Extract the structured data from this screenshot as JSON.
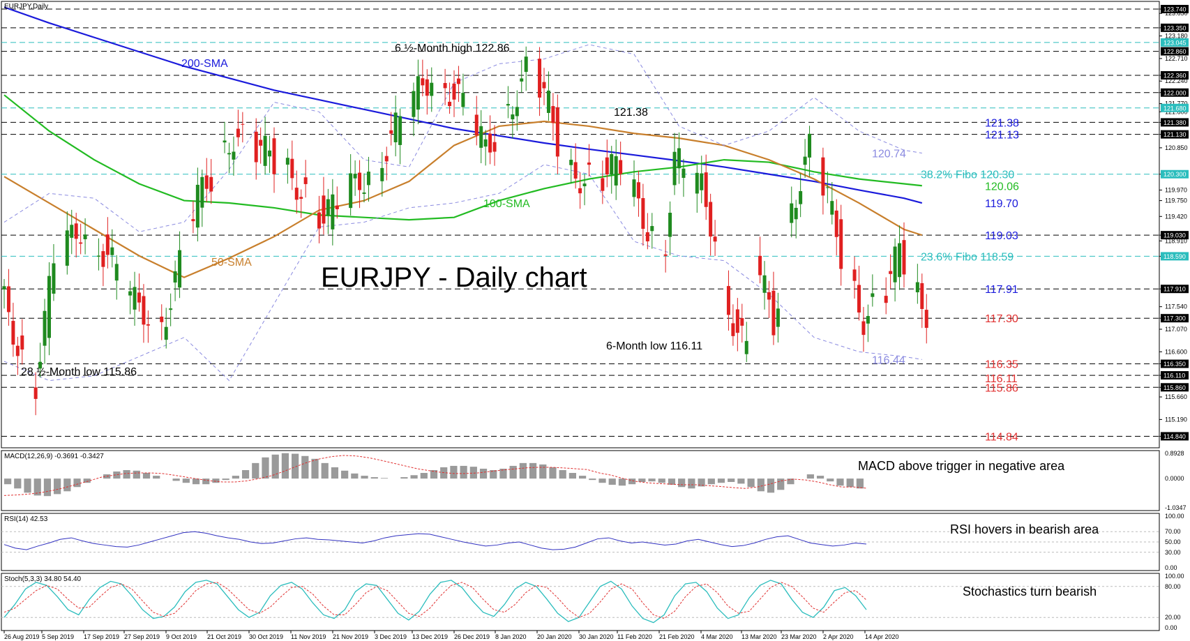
{
  "chart_data": {
    "type": "candlestick",
    "symbol_label": "EURJPY,Daily",
    "title": "EURJPY - Daily chart",
    "y_range": [
      114.6,
      123.9
    ],
    "x_labels": [
      "26 Aug 2019",
      "5 Sep 2019",
      "17 Sep 2019",
      "27 Sep 2019",
      "9 Oct 2019",
      "21 Oct 2019",
      "30 Oct 2019",
      "11 Nov 2019",
      "21 Nov 2019",
      "3 Dec 2019",
      "13 Dec 2019",
      "26 Dec 2019",
      "8 Jan 2020",
      "20 Jan 2020",
      "30 Jan 2020",
      "11 Feb 2020",
      "21 Feb 2020",
      "4 Mar 2020",
      "13 Mar 2020",
      "23 Mar 2020",
      "2 Apr 2020",
      "14 Apr 2020"
    ],
    "price_axis_ticks": [
      "123.740",
      "123.650",
      "123.350",
      "123.180",
      "122.710",
      "122.360",
      "122.240",
      "122.000",
      "121.770",
      "121.600",
      "121.380",
      "121.130",
      "120.850",
      "120.300",
      "119.970",
      "119.750",
      "119.420",
      "119.030",
      "118.590",
      "118.910",
      "117.910",
      "117.540",
      "117.300",
      "117.070",
      "116.600",
      "116.350",
      "116.110",
      "115.860",
      "115.660",
      "115.190",
      "114.840"
    ],
    "highlighted_levels": [
      {
        "value": 123.74,
        "label": "123.740",
        "style": "box"
      },
      {
        "value": 123.35,
        "label": "123.350",
        "style": "box"
      },
      {
        "value": 123.045,
        "label": "123.045",
        "style": "cyan-box"
      },
      {
        "value": 122.86,
        "label": "122.860",
        "style": "box"
      },
      {
        "value": 122.36,
        "label": "122.360",
        "style": "box"
      },
      {
        "value": 122.0,
        "label": "122.000",
        "style": "box"
      },
      {
        "value": 121.68,
        "label": "121.680",
        "style": "cyan-box"
      },
      {
        "value": 121.38,
        "label": "121.380",
        "style": "box"
      },
      {
        "value": 121.13,
        "label": "121.130",
        "style": "box"
      },
      {
        "value": 120.3,
        "label": "120.300",
        "style": "cyan-box"
      },
      {
        "value": 119.03,
        "label": "119.030",
        "style": "box"
      },
      {
        "value": 118.59,
        "label": "118.590",
        "style": "cyan-box"
      },
      {
        "value": 117.91,
        "label": "117.910",
        "style": "box"
      },
      {
        "value": 117.3,
        "label": "117.300",
        "style": "box"
      },
      {
        "value": 116.35,
        "label": "116.350",
        "style": "box"
      },
      {
        "value": 116.11,
        "label": "116.110",
        "style": "box"
      },
      {
        "value": 115.86,
        "label": "115.860",
        "style": "box"
      },
      {
        "value": 114.84,
        "label": "114.840",
        "style": "box"
      }
    ],
    "horizontal_lines": [
      {
        "value": 123.74,
        "color": "#000000"
      },
      {
        "value": 123.35,
        "color": "#000000"
      },
      {
        "value": 123.045,
        "color": "#2bbdbd"
      },
      {
        "value": 122.86,
        "color": "#000000"
      },
      {
        "value": 122.36,
        "color": "#000000"
      },
      {
        "value": 122.0,
        "color": "#000000"
      },
      {
        "value": 121.68,
        "color": "#2bbdbd"
      },
      {
        "value": 121.38,
        "color": "#000000"
      },
      {
        "value": 121.13,
        "color": "#000000"
      },
      {
        "value": 120.3,
        "color": "#2bbdbd"
      },
      {
        "value": 119.03,
        "color": "#000000"
      },
      {
        "value": 118.59,
        "color": "#2bbdbd"
      },
      {
        "value": 117.91,
        "color": "#000000"
      },
      {
        "value": 117.3,
        "color": "#000000"
      },
      {
        "value": 116.35,
        "color": "#000000"
      },
      {
        "value": 116.11,
        "color": "#000000"
      },
      {
        "value": 115.86,
        "color": "#000000"
      },
      {
        "value": 114.84,
        "color": "#000000"
      }
    ],
    "right_level_labels": [
      {
        "text": "121.38",
        "value": 121.38,
        "color": "#1a1adb"
      },
      {
        "text": "121.13",
        "value": 121.13,
        "color": "#1a1adb"
      },
      {
        "text": "120.74",
        "value": 120.74,
        "color": "#8a8ae0"
      },
      {
        "text": "38.2% Fibo 120.30",
        "value": 120.3,
        "color": "#2bbdbd"
      },
      {
        "text": "120.06",
        "value": 120.06,
        "color": "#22bb22"
      },
      {
        "text": "119.70",
        "value": 119.7,
        "color": "#1a1adb"
      },
      {
        "text": "119.03",
        "value": 119.03,
        "color": "#1a1adb"
      },
      {
        "text": "23.6% Fibo 118.59",
        "value": 118.59,
        "color": "#2bbdbd"
      },
      {
        "text": "117.91",
        "value": 117.91,
        "color": "#1a1adb"
      },
      {
        "text": "117.30",
        "value": 117.3,
        "color": "#e03030"
      },
      {
        "text": "116.44",
        "value": 116.44,
        "color": "#8a8ae0"
      },
      {
        "text": "116.35",
        "value": 116.35,
        "color": "#e03030"
      },
      {
        "text": "116.11",
        "value": 116.11,
        "color": "#e03030"
      },
      {
        "text": "115.86",
        "value": 115.86,
        "color": "#e03030"
      },
      {
        "text": "114.84",
        "value": 114.84,
        "color": "#e03030"
      }
    ],
    "annotations": [
      {
        "text": "6 ½-Month high 122.86",
        "color": "#000000"
      },
      {
        "text": "121.38",
        "color": "#000000"
      },
      {
        "text": "200-SMA",
        "color": "#1a1adb"
      },
      {
        "text": "100-SMA",
        "color": "#22bb22"
      },
      {
        "text": "50-SMA",
        "color": "#c87f2c"
      },
      {
        "text": "28 ½-Month low 115.86",
        "color": "#000000"
      },
      {
        "text": "6-Month low 116.11",
        "color": "#000000"
      }
    ],
    "series": [
      {
        "name": "200-SMA",
        "color": "#1a1adb",
        "points": [
          [
            0,
            123.78
          ],
          [
            10,
            123.45
          ],
          [
            20,
            123.15
          ],
          [
            30,
            122.85
          ],
          [
            40,
            122.55
          ],
          [
            50,
            122.3
          ],
          [
            60,
            122.05
          ],
          [
            70,
            121.85
          ],
          [
            80,
            121.65
          ],
          [
            90,
            121.45
          ],
          [
            100,
            121.25
          ],
          [
            110,
            121.1
          ],
          [
            120,
            120.95
          ],
          [
            130,
            120.82
          ],
          [
            140,
            120.7
          ],
          [
            150,
            120.58
          ],
          [
            160,
            120.45
          ],
          [
            170,
            120.3
          ],
          [
            180,
            120.15
          ],
          [
            190,
            119.97
          ],
          [
            200,
            119.8
          ],
          [
            204,
            119.7
          ]
        ]
      },
      {
        "name": "100-SMA",
        "color": "#22bb22",
        "points": [
          [
            0,
            121.95
          ],
          [
            10,
            121.2
          ],
          [
            20,
            120.6
          ],
          [
            30,
            120.1
          ],
          [
            40,
            119.75
          ],
          [
            50,
            119.7
          ],
          [
            60,
            119.6
          ],
          [
            70,
            119.45
          ],
          [
            80,
            119.4
          ],
          [
            90,
            119.35
          ],
          [
            100,
            119.4
          ],
          [
            110,
            119.75
          ],
          [
            120,
            120.0
          ],
          [
            130,
            120.2
          ],
          [
            140,
            120.35
          ],
          [
            150,
            120.45
          ],
          [
            160,
            120.6
          ],
          [
            170,
            120.55
          ],
          [
            180,
            120.35
          ],
          [
            190,
            120.2
          ],
          [
            200,
            120.1
          ],
          [
            204,
            120.06
          ]
        ]
      },
      {
        "name": "50-SMA",
        "color": "#c87f2c",
        "points": [
          [
            0,
            120.25
          ],
          [
            10,
            119.7
          ],
          [
            20,
            119.15
          ],
          [
            30,
            118.6
          ],
          [
            40,
            118.15
          ],
          [
            50,
            118.55
          ],
          [
            60,
            119.0
          ],
          [
            70,
            119.55
          ],
          [
            80,
            119.75
          ],
          [
            90,
            120.15
          ],
          [
            100,
            120.9
          ],
          [
            110,
            121.3
          ],
          [
            120,
            121.4
          ],
          [
            130,
            121.3
          ],
          [
            140,
            121.15
          ],
          [
            150,
            121.05
          ],
          [
            160,
            120.9
          ],
          [
            170,
            120.6
          ],
          [
            180,
            120.2
          ],
          [
            190,
            119.7
          ],
          [
            200,
            119.15
          ],
          [
            204,
            119.03
          ]
        ]
      },
      {
        "name": "Bollinger upper",
        "color": "#8a8ae0",
        "points": [
          [
            0,
            119.3
          ],
          [
            10,
            119.9
          ],
          [
            20,
            119.8
          ],
          [
            30,
            119.1
          ],
          [
            40,
            119.3
          ],
          [
            50,
            120.4
          ],
          [
            60,
            121.8
          ],
          [
            70,
            121.6
          ],
          [
            80,
            120.6
          ],
          [
            90,
            120.45
          ],
          [
            100,
            122.2
          ],
          [
            110,
            122.6
          ],
          [
            120,
            122.7
          ],
          [
            130,
            123.0
          ],
          [
            140,
            122.8
          ],
          [
            150,
            121.3
          ],
          [
            160,
            120.9
          ],
          [
            170,
            121.2
          ],
          [
            180,
            121.9
          ],
          [
            190,
            121.2
          ],
          [
            200,
            120.8
          ],
          [
            204,
            120.74
          ]
        ]
      },
      {
        "name": "Bollinger lower",
        "color": "#8a8ae0",
        "points": [
          [
            0,
            116.4
          ],
          [
            10,
            116.0
          ],
          [
            20,
            116.1
          ],
          [
            30,
            116.5
          ],
          [
            40,
            116.9
          ],
          [
            50,
            116.0
          ],
          [
            60,
            117.6
          ],
          [
            70,
            119.2
          ],
          [
            80,
            119.3
          ],
          [
            90,
            119.6
          ],
          [
            100,
            119.7
          ],
          [
            110,
            119.9
          ],
          [
            120,
            120.5
          ],
          [
            130,
            120.3
          ],
          [
            140,
            118.9
          ],
          [
            150,
            118.6
          ],
          [
            160,
            118.5
          ],
          [
            170,
            117.8
          ],
          [
            180,
            116.9
          ],
          [
            190,
            116.6
          ],
          [
            200,
            116.5
          ],
          [
            204,
            116.44
          ]
        ]
      }
    ]
  },
  "macd_panel": {
    "label": "MACD(12,26,9) -0.3691 -0.3427",
    "annotation": "MACD above trigger in negative area",
    "ticks": [
      "0.8928",
      "0.0000",
      "-1.0347"
    ],
    "y_range": [
      -1.0347,
      0.8928
    ],
    "histogram": [
      -0.2,
      -0.35,
      -0.5,
      -0.6,
      -0.62,
      -0.55,
      -0.45,
      -0.3,
      -0.15,
      0.0,
      0.15,
      0.25,
      0.3,
      0.28,
      0.2,
      0.1,
      0.0,
      -0.08,
      -0.15,
      -0.2,
      -0.2,
      -0.15,
      -0.05,
      0.1,
      0.3,
      0.55,
      0.75,
      0.85,
      0.9,
      0.88,
      0.8,
      0.7,
      0.55,
      0.4,
      0.28,
      0.18,
      0.1,
      0.05,
      0.02,
      0.0,
      0.05,
      0.12,
      0.2,
      0.3,
      0.4,
      0.45,
      0.45,
      0.42,
      0.35,
      0.3,
      0.35,
      0.45,
      0.55,
      0.55,
      0.5,
      0.4,
      0.3,
      0.2,
      0.1,
      -0.05,
      -0.15,
      -0.22,
      -0.25,
      -0.2,
      -0.12,
      -0.1,
      -0.15,
      -0.22,
      -0.3,
      -0.35,
      -0.28,
      -0.2,
      -0.15,
      -0.12,
      -0.18,
      -0.3,
      -0.45,
      -0.5,
      -0.4,
      -0.2,
      0.0,
      0.15,
      0.1,
      -0.1,
      -0.25,
      -0.3,
      -0.35
    ],
    "signal": [
      -0.6,
      -0.58,
      -0.55,
      -0.5,
      -0.42,
      -0.32,
      -0.2,
      -0.08,
      0.05,
      0.12,
      0.18,
      0.2,
      0.2,
      0.18,
      0.12,
      0.05,
      -0.02,
      -0.08,
      -0.12,
      -0.12,
      -0.08,
      0.0,
      0.1,
      0.25,
      0.42,
      0.58,
      0.7,
      0.78,
      0.82,
      0.8,
      0.74,
      0.65,
      0.55,
      0.45,
      0.35,
      0.28,
      0.22,
      0.18,
      0.18,
      0.2,
      0.25,
      0.3,
      0.34,
      0.38,
      0.4,
      0.4,
      0.38,
      0.35,
      0.32,
      0.2,
      0.12,
      0.0,
      -0.1,
      -0.15,
      -0.18,
      -0.2,
      -0.22,
      -0.22,
      -0.25,
      -0.28,
      -0.32,
      -0.35,
      -0.3,
      -0.2,
      -0.08,
      -0.02,
      -0.05,
      -0.12,
      -0.22,
      -0.3,
      -0.3,
      -0.34
    ],
    "hist_color": "#9a9a9a",
    "signal_color": "#e03030"
  },
  "rsi_panel": {
    "label": "RSI(14) 42.53",
    "annotation": "RSI hovers in bearish area",
    "ticks": [
      "100.00",
      "70.00",
      "50.00",
      "30.00",
      "0.00"
    ],
    "y_range": [
      0,
      100
    ],
    "values": [
      45,
      38,
      35,
      42,
      48,
      55,
      58,
      52,
      47,
      44,
      41,
      40,
      44,
      50,
      56,
      62,
      68,
      70,
      67,
      62,
      58,
      55,
      50,
      47,
      48,
      52,
      56,
      58,
      55,
      54,
      52,
      50,
      48,
      52,
      58,
      62,
      64,
      66,
      65,
      60,
      55,
      50,
      46,
      42,
      44,
      48,
      50,
      44,
      38,
      35,
      36,
      40,
      48,
      56,
      58,
      52,
      48,
      50,
      47,
      44,
      46,
      52,
      55,
      50,
      45,
      41,
      43,
      48,
      55,
      60,
      62,
      55,
      48,
      45,
      42,
      44,
      48,
      46
    ],
    "color": "#3030c0"
  },
  "stoch_panel": {
    "label": "Stoch(5,3,3) 34.80 54.40",
    "annotation": "Stochastics turn bearish",
    "ticks": [
      "100.00",
      "80.00",
      "20.00",
      "0.00"
    ],
    "y_range": [
      0,
      100
    ],
    "k_values": [
      20,
      45,
      75,
      88,
      82,
      60,
      35,
      25,
      55,
      78,
      90,
      85,
      62,
      35,
      18,
      22,
      40,
      70,
      88,
      92,
      85,
      60,
      35,
      20,
      30,
      62,
      82,
      88,
      75,
      48,
      25,
      18,
      35,
      70,
      85,
      82,
      55,
      28,
      15,
      32,
      65,
      88,
      92,
      78,
      52,
      30,
      22,
      45,
      75,
      88,
      80,
      55,
      28,
      12,
      20,
      50,
      80,
      90,
      75,
      42,
      18,
      10,
      25,
      62,
      85,
      88,
      70,
      38,
      18,
      25,
      58,
      82,
      92,
      85,
      55,
      30,
      20,
      40,
      72,
      78,
      62,
      35
    ],
    "d_values": [
      30,
      38,
      55,
      72,
      82,
      75,
      55,
      38,
      40,
      60,
      78,
      85,
      75,
      52,
      30,
      22,
      28,
      48,
      72,
      85,
      88,
      75,
      55,
      35,
      28,
      40,
      60,
      78,
      80,
      65,
      42,
      25,
      25,
      45,
      68,
      80,
      72,
      50,
      28,
      22,
      38,
      62,
      82,
      88,
      78,
      55,
      35,
      30,
      45,
      68,
      82,
      78,
      58,
      35,
      20,
      28,
      50,
      75,
      85,
      75,
      48,
      25,
      18,
      32,
      60,
      80,
      85,
      68,
      42,
      28,
      32,
      55,
      78,
      88,
      80,
      60,
      38,
      30,
      50,
      68,
      72,
      54
    ],
    "k_color": "#2bbdbd",
    "d_color": "#e03030"
  }
}
